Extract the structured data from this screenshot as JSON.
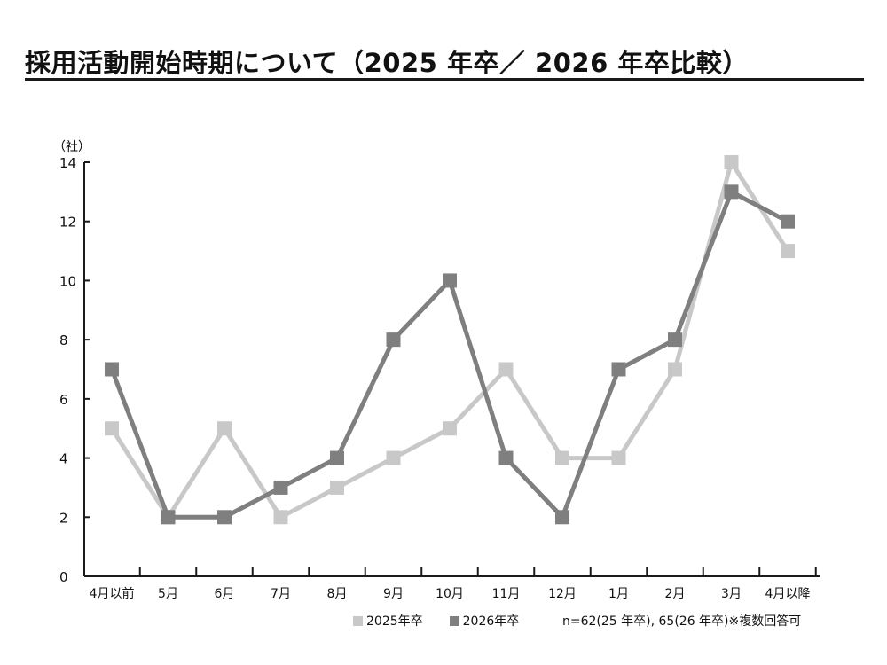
{
  "title": "採用活動開始時期について（2025 年卒／ 2026 年卒比較）",
  "note": "n=62(25 年卒), 65(26 年卒)※複数回答可",
  "colors": {
    "series_2025": "#c8c8c8",
    "series_2026": "#7f7f7f",
    "axis": "#1a1a1a"
  },
  "chart_data": {
    "type": "line",
    "ylabel": "（社）",
    "xlabel": "",
    "ylim": [
      0,
      14
    ],
    "yticks": [
      "0",
      "2",
      "4",
      "6",
      "8",
      "10",
      "12",
      "14"
    ],
    "categories": [
      "4月以前",
      "5月",
      "6月",
      "7月",
      "8月",
      "9月",
      "10月",
      "11月",
      "12月",
      "1月",
      "2月",
      "3月",
      "4月以降"
    ],
    "series": [
      {
        "name": "2025年卒",
        "values": [
          5,
          2,
          5,
          2,
          3,
          4,
          5,
          7,
          4,
          4,
          7,
          14,
          11
        ]
      },
      {
        "name": "2026年卒",
        "values": [
          7,
          2,
          2,
          3,
          4,
          8,
          10,
          4,
          2,
          7,
          8,
          13,
          12
        ]
      }
    ],
    "legend_position": "bottom-center",
    "grid": false
  }
}
